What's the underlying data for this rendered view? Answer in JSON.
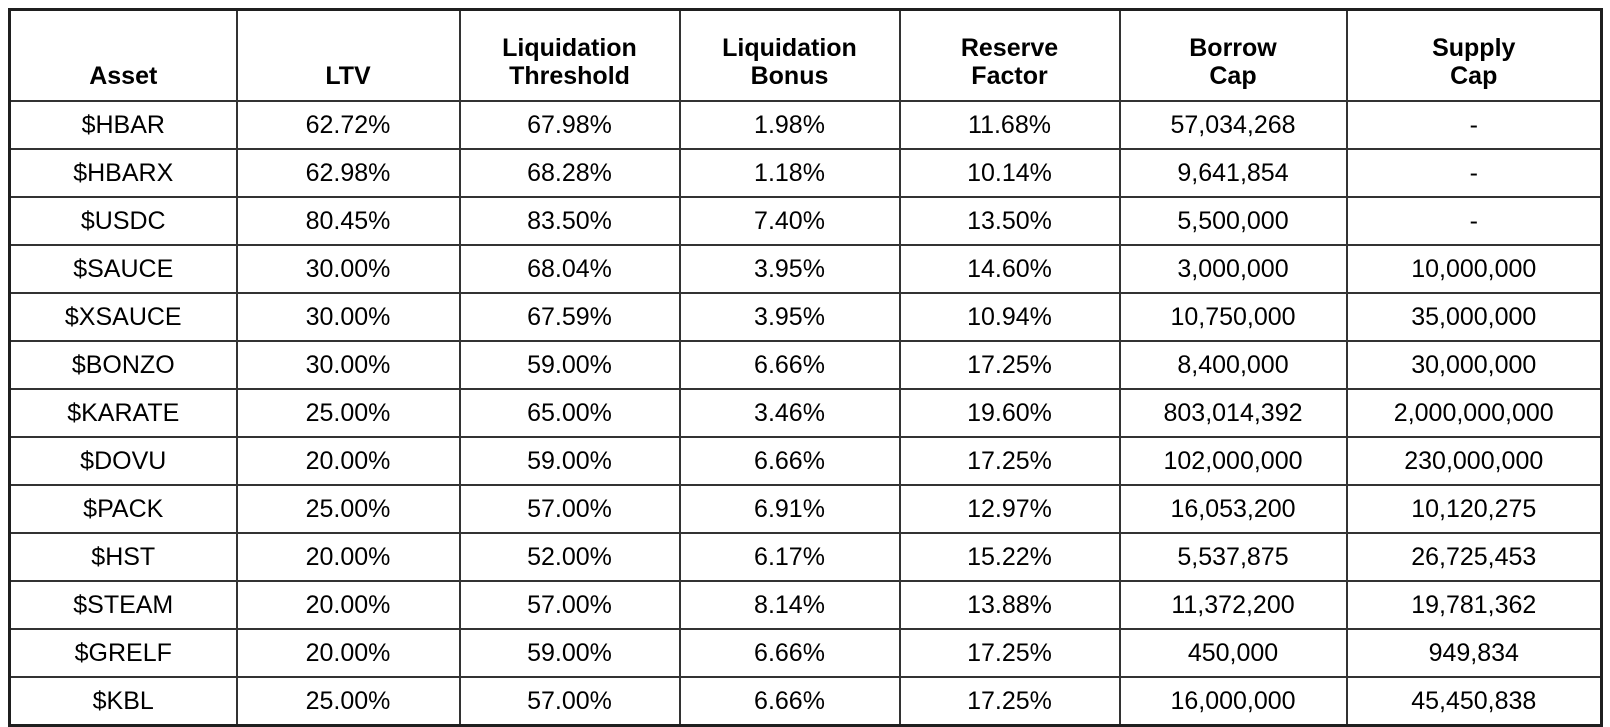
{
  "table": {
    "title": "asset-risk-parameters",
    "headers": [
      "Asset",
      "LTV",
      "Liquidation\nThreshold",
      "Liquidation\nBonus",
      "Reserve\nFactor",
      "Borrow\nCap",
      "Supply\nCap"
    ],
    "column_keys": [
      "asset",
      "ltv",
      "liquidation-threshold",
      "liquidation-bonus",
      "reserve-factor",
      "borrow-cap",
      "supply-cap"
    ],
    "rows": [
      [
        "$HBAR",
        "62.72%",
        "67.98%",
        "1.98%",
        "11.68%",
        "57,034,268",
        "-"
      ],
      [
        "$HBARX",
        "62.98%",
        "68.28%",
        "1.18%",
        "10.14%",
        "9,641,854",
        "-"
      ],
      [
        "$USDC",
        "80.45%",
        "83.50%",
        "7.40%",
        "13.50%",
        "5,500,000",
        "-"
      ],
      [
        "$SAUCE",
        "30.00%",
        "68.04%",
        "3.95%",
        "14.60%",
        "3,000,000",
        "10,000,000"
      ],
      [
        "$XSAUCE",
        "30.00%",
        "67.59%",
        "3.95%",
        "10.94%",
        "10,750,000",
        "35,000,000"
      ],
      [
        "$BONZO",
        "30.00%",
        "59.00%",
        "6.66%",
        "17.25%",
        "8,400,000",
        "30,000,000"
      ],
      [
        "$KARATE",
        "25.00%",
        "65.00%",
        "3.46%",
        "19.60%",
        "803,014,392",
        "2,000,000,000"
      ],
      [
        "$DOVU",
        "20.00%",
        "59.00%",
        "6.66%",
        "17.25%",
        "102,000,000",
        "230,000,000"
      ],
      [
        "$PACK",
        "25.00%",
        "57.00%",
        "6.91%",
        "12.97%",
        "16,053,200",
        "10,120,275"
      ],
      [
        "$HST",
        "20.00%",
        "52.00%",
        "6.17%",
        "15.22%",
        "5,537,875",
        "26,725,453"
      ],
      [
        "$STEAM",
        "20.00%",
        "57.00%",
        "8.14%",
        "13.88%",
        "11,372,200",
        "19,781,362"
      ],
      [
        "$GRELF",
        "20.00%",
        "59.00%",
        "6.66%",
        "17.25%",
        "450,000",
        "949,834"
      ],
      [
        "$KBL",
        "25.00%",
        "57.00%",
        "6.66%",
        "17.25%",
        "16,000,000",
        "45,450,838"
      ]
    ]
  },
  "colors": {
    "background": "#ffffff",
    "text": "#000000",
    "border_inner": "#333333",
    "border_outer": "#1f1f1f"
  }
}
